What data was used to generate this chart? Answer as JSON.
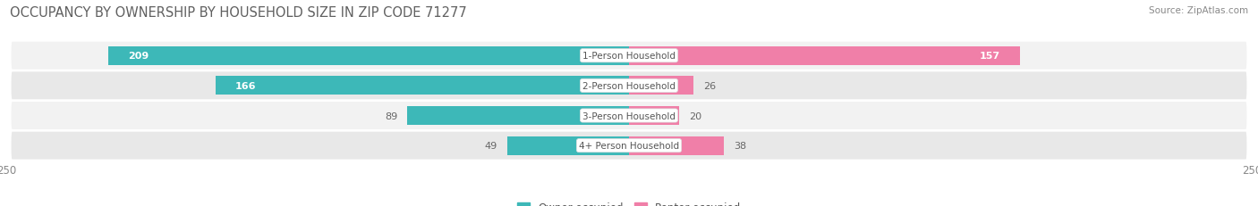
{
  "title": "OCCUPANCY BY OWNERSHIP BY HOUSEHOLD SIZE IN ZIP CODE 71277",
  "source": "Source: ZipAtlas.com",
  "categories": [
    "1-Person Household",
    "2-Person Household",
    "3-Person Household",
    "4+ Person Household"
  ],
  "owner_values": [
    209,
    166,
    89,
    49
  ],
  "renter_values": [
    157,
    26,
    20,
    38
  ],
  "owner_color": "#3DB8B8",
  "renter_color": "#F07FA8",
  "owner_color_light": "#A8DCDC",
  "renter_color_light": "#F9BBCC",
  "axis_max": 250,
  "row_bg_color_even": "#F2F2F2",
  "row_bg_color_odd": "#E8E8E8",
  "title_fontsize": 10.5,
  "source_fontsize": 7.5,
  "tick_fontsize": 8.5,
  "value_fontsize": 8,
  "cat_fontsize": 7.5,
  "bar_height": 0.62,
  "figsize": [
    14.06,
    2.32
  ],
  "dpi": 100
}
